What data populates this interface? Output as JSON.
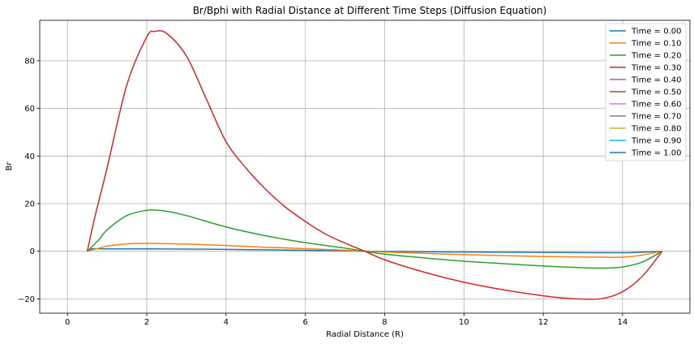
{
  "chart_data": {
    "type": "line",
    "title": "Br/Bphi with Radial Distance at Different Time Steps (Diffusion Equation)",
    "xlabel": "Radial Distance (R)",
    "ylabel": "Br",
    "xlim": [
      -0.7,
      15.7
    ],
    "ylim": [
      -26,
      97
    ],
    "xticks": [
      0,
      2,
      4,
      6,
      8,
      10,
      12,
      14
    ],
    "yticks": [
      -20,
      0,
      20,
      40,
      60,
      80
    ],
    "ytick_labels": [
      "−20",
      "0",
      "20",
      "40",
      "60",
      "80"
    ],
    "grid": true,
    "legend_position": "top-right",
    "series": [
      {
        "name": "Time = 0.00",
        "color": "#1f77b4",
        "x": [
          0.5,
          0.6,
          1,
          2,
          4,
          6,
          7.5,
          10,
          12,
          14,
          15
        ],
        "y": [
          0,
          1,
          1,
          1,
          0.8,
          0.4,
          0,
          -0.3,
          -0.5,
          -0.6,
          0
        ]
      },
      {
        "name": "Time = 0.10",
        "color": "#ff7f0e",
        "x": [
          0.5,
          0.8,
          1,
          1.5,
          2,
          2.5,
          3,
          4,
          5,
          6,
          7,
          7.5,
          8,
          10,
          12,
          13,
          14,
          14.5,
          15
        ],
        "y": [
          0,
          1.3,
          2.2,
          3.1,
          3.3,
          3.2,
          3,
          2.4,
          1.7,
          1.1,
          0.4,
          0,
          -0.3,
          -1.4,
          -2.2,
          -2.4,
          -2.5,
          -1.6,
          0
        ]
      },
      {
        "name": "Time = 0.20",
        "color": "#2ca02c",
        "x": [
          0.5,
          0.8,
          1,
          1.5,
          2,
          2.2,
          2.5,
          3,
          4,
          5,
          6,
          7,
          7.5,
          8,
          9,
          10,
          11,
          12,
          13,
          13.5,
          14,
          14.5,
          15
        ],
        "y": [
          0,
          5,
          9,
          15,
          17.2,
          17.3,
          16.8,
          15,
          10.2,
          6.5,
          3.6,
          1.3,
          0,
          -1.2,
          -2.8,
          -4.2,
          -5.2,
          -6.2,
          -6.9,
          -7.1,
          -6.6,
          -4.5,
          0
        ]
      },
      {
        "name": "Time = 0.30",
        "color": "#d62728",
        "x": [
          0.5,
          0.7,
          1,
          1.5,
          2,
          2.2,
          2.5,
          3,
          3.5,
          4,
          4.5,
          5,
          5.5,
          6,
          6.5,
          7,
          7.5,
          8,
          9,
          10,
          11,
          12,
          12.5,
          13,
          13.5,
          14,
          14.5,
          15
        ],
        "y": [
          0,
          15,
          35,
          70,
          90,
          92.3,
          91.5,
          82,
          64,
          46,
          35,
          26,
          18.5,
          12.5,
          7.3,
          3.4,
          0,
          -3.6,
          -8.8,
          -13,
          -16.2,
          -18.7,
          -19.6,
          -20.1,
          -19.8,
          -17,
          -10.5,
          0
        ]
      },
      {
        "name": "Time = 0.40",
        "color": "#9467bd",
        "x": [],
        "y": []
      },
      {
        "name": "Time = 0.50",
        "color": "#8c564b",
        "x": [],
        "y": []
      },
      {
        "name": "Time = 0.60",
        "color": "#e377c2",
        "x": [],
        "y": []
      },
      {
        "name": "Time = 0.70",
        "color": "#7f7f7f",
        "x": [],
        "y": []
      },
      {
        "name": "Time = 0.80",
        "color": "#bcbd22",
        "x": [],
        "y": []
      },
      {
        "name": "Time = 0.90",
        "color": "#17becf",
        "x": [],
        "y": []
      },
      {
        "name": "Time = 1.00",
        "color": "#1f77b4",
        "x": [],
        "y": []
      }
    ]
  }
}
